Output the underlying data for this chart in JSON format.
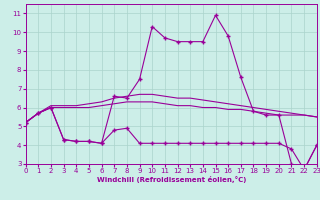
{
  "title": "",
  "xlabel": "Windchill (Refroidissement éolien,°C)",
  "bg_color": "#cceee8",
  "line_color": "#990099",
  "grid_color": "#aad4cc",
  "hours": [
    0,
    1,
    2,
    3,
    4,
    5,
    6,
    7,
    8,
    9,
    10,
    11,
    12,
    13,
    14,
    15,
    16,
    17,
    18,
    19,
    20,
    21,
    22,
    23
  ],
  "line1": [
    5.2,
    5.7,
    6.0,
    4.3,
    4.2,
    4.2,
    4.1,
    4.8,
    4.9,
    4.1,
    4.1,
    4.1,
    4.1,
    4.1,
    4.1,
    4.1,
    4.1,
    4.1,
    4.1,
    4.1,
    4.1,
    3.8,
    2.7,
    4.0
  ],
  "line2": [
    5.2,
    5.7,
    6.0,
    4.3,
    4.2,
    4.2,
    4.1,
    6.6,
    6.5,
    7.5,
    10.3,
    9.7,
    9.5,
    9.5,
    9.5,
    10.9,
    9.8,
    7.6,
    5.8,
    5.6,
    5.6,
    3.0,
    2.7,
    4.0
  ],
  "line3": [
    5.2,
    5.7,
    6.0,
    6.0,
    6.0,
    6.0,
    6.1,
    6.2,
    6.3,
    6.3,
    6.3,
    6.2,
    6.1,
    6.1,
    6.0,
    6.0,
    5.9,
    5.9,
    5.8,
    5.7,
    5.6,
    5.6,
    5.6,
    5.5
  ],
  "line4": [
    5.2,
    5.7,
    6.1,
    6.1,
    6.1,
    6.2,
    6.3,
    6.5,
    6.6,
    6.7,
    6.7,
    6.6,
    6.5,
    6.5,
    6.4,
    6.3,
    6.2,
    6.1,
    6.0,
    5.9,
    5.8,
    5.7,
    5.6,
    5.5
  ],
  "xlim": [
    0,
    23
  ],
  "ylim": [
    3.0,
    11.5
  ],
  "yticks": [
    3,
    4,
    5,
    6,
    7,
    8,
    9,
    10,
    11
  ],
  "xticks": [
    0,
    1,
    2,
    3,
    4,
    5,
    6,
    7,
    8,
    9,
    10,
    11,
    12,
    13,
    14,
    15,
    16,
    17,
    18,
    19,
    20,
    21,
    22,
    23
  ]
}
